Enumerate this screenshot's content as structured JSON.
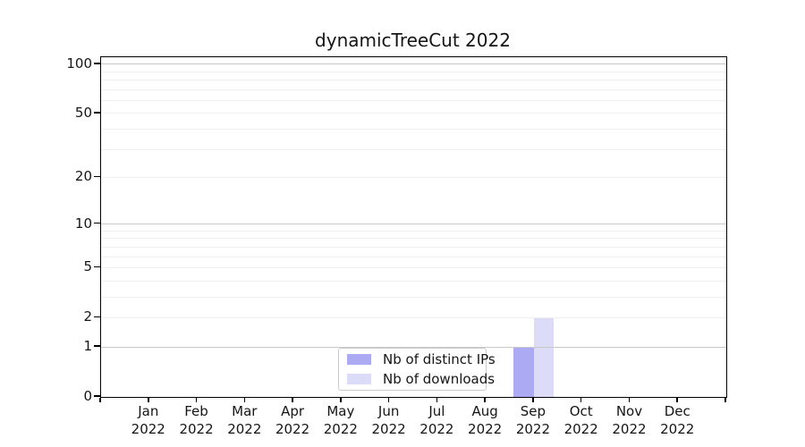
{
  "chart_data": {
    "type": "bar",
    "title": "dynamicTreeCut 2022",
    "categories": [
      "Jan 2022",
      "Feb 2022",
      "Mar 2022",
      "Apr 2022",
      "May 2022",
      "Jun 2022",
      "Jul 2022",
      "Aug 2022",
      "Sep 2022",
      "Oct 2022",
      "Nov 2022",
      "Dec 2022"
    ],
    "x_tick_labels": [
      {
        "line1": "Jan",
        "line2": "2022"
      },
      {
        "line1": "Feb",
        "line2": "2022"
      },
      {
        "line1": "Mar",
        "line2": "2022"
      },
      {
        "line1": "Apr",
        "line2": "2022"
      },
      {
        "line1": "May",
        "line2": "2022"
      },
      {
        "line1": "Jun",
        "line2": "2022"
      },
      {
        "line1": "Jul",
        "line2": "2022"
      },
      {
        "line1": "Aug",
        "line2": "2022"
      },
      {
        "line1": "Sep",
        "line2": "2022"
      },
      {
        "line1": "Oct",
        "line2": "2022"
      },
      {
        "line1": "Nov",
        "line2": "2022"
      },
      {
        "line1": "Dec",
        "line2": "2022"
      }
    ],
    "series": [
      {
        "name": "Nb of distinct IPs",
        "color": "#abaaf2",
        "values": [
          0,
          0,
          0,
          0,
          0,
          0,
          0,
          0,
          1,
          0,
          0,
          0
        ]
      },
      {
        "name": "Nb of downloads",
        "color": "#dcdcf8",
        "values": [
          0,
          0,
          0,
          0,
          0,
          0,
          0,
          0,
          2,
          0,
          0,
          0
        ]
      }
    ],
    "y_axis": {
      "scale": "log1p",
      "ylim": [
        0,
        110.2
      ],
      "tick_values": [
        0,
        1,
        2,
        5,
        10,
        20,
        50,
        100
      ],
      "tick_labels": [
        "0",
        "1",
        "2",
        "5",
        "10",
        "20",
        "50",
        "100"
      ],
      "major_gridlines": [
        1,
        10,
        100
      ],
      "minor_gridlines": [
        2,
        3,
        4,
        5,
        6,
        7,
        8,
        9,
        20,
        30,
        40,
        50,
        60,
        70,
        80,
        90
      ]
    },
    "xlabel": "",
    "ylabel": "",
    "grid": "horizontal",
    "legend_position": "lower center",
    "colors": {
      "major_grid": "#c8c8c8",
      "minor_grid": "#efefef",
      "axis": "#000000",
      "text": "#151515",
      "background": "#ffffff"
    }
  }
}
